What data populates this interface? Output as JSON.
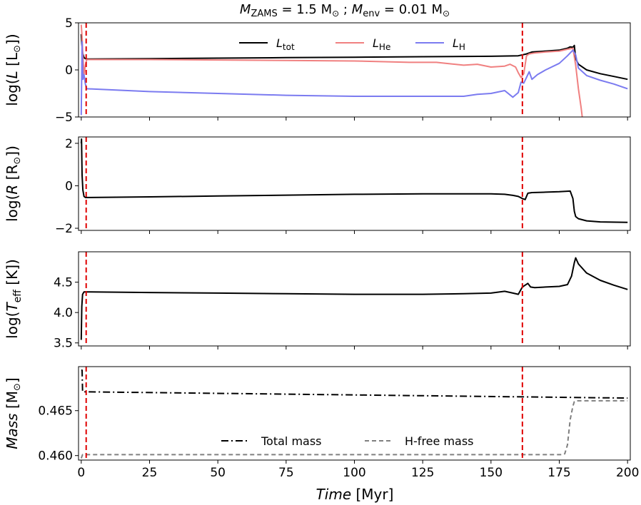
{
  "chart_data": {
    "type": "line",
    "title": "M_ZAMS = 1.5 M⊙ ; M_env = 0.01 M⊙",
    "title_parts": {
      "m1": "M",
      "m1_sub": "ZAMS",
      "m1_val": " = 1.5 M",
      "sun1": "⊙",
      "sep": " ; ",
      "m2": "M",
      "m2_sub": "env",
      "m2_val": " = 0.01 M",
      "sun2": "⊙"
    },
    "xlabel": {
      "italic": "Time",
      "rest": " [Myr]"
    },
    "xlim": [
      -1,
      201
    ],
    "x_ticks": [
      0,
      25,
      50,
      75,
      100,
      125,
      150,
      175,
      200
    ],
    "vlines": {
      "x": [
        1.8,
        161.5
      ],
      "color": "#e00000"
    },
    "panels": [
      {
        "id": "luminosity",
        "ylabel": {
          "pre": "log(",
          "italic": "L",
          "mid": " [L",
          "sun": "⊙",
          "post": "])"
        },
        "ylim": [
          -5,
          5
        ],
        "y_ticks": [
          -5,
          0,
          5
        ],
        "series": [
          {
            "name": "L_tot",
            "legend_main": "L",
            "legend_sub": "tot",
            "color": "#000000",
            "x": [
              0,
              0.2,
              0.5,
              1,
              1.5,
              2,
              25,
              50,
              75,
              100,
              125,
              150,
              160,
              163,
              165,
              170,
              175,
              178,
              179,
              180,
              180.5,
              181,
              182,
              185,
              190,
              195,
              200
            ],
            "y": [
              3.8,
              2.8,
              1.8,
              1.3,
              1.2,
              1.15,
              1.2,
              1.25,
              1.3,
              1.35,
              1.4,
              1.45,
              1.5,
              1.7,
              1.9,
              2.0,
              2.1,
              2.3,
              2.45,
              2.4,
              2.6,
              1.2,
              0.6,
              0.0,
              -0.4,
              -0.7,
              -1.0
            ]
          },
          {
            "name": "L_He",
            "legend_main": "L",
            "legend_sub": "He",
            "color": "#f08080",
            "x": [
              0,
              0.3,
              0.6,
              1,
              1.5,
              2,
              25,
              50,
              75,
              100,
              120,
              130,
              140,
              145,
              150,
              155,
              157,
              159,
              160,
              161,
              162,
              163,
              164,
              166,
              170,
              175,
              178,
              180,
              181,
              182,
              183,
              183.5
            ],
            "y": [
              4.8,
              3.5,
              1.5,
              -0.5,
              0.5,
              1.1,
              1.1,
              1.05,
              1.0,
              0.95,
              0.8,
              0.8,
              0.5,
              0.6,
              0.3,
              0.4,
              0.6,
              0.3,
              -0.3,
              -0.8,
              -0.4,
              1.5,
              1.7,
              1.8,
              1.9,
              2.0,
              2.2,
              2.3,
              0.5,
              -2.0,
              -4.0,
              -5.2
            ]
          },
          {
            "name": "L_H",
            "legend_main": "L",
            "legend_sub": "H",
            "color": "#7b7bf0",
            "x": [
              0,
              0.3,
              0.6,
              1,
              1.5,
              2,
              25,
              50,
              75,
              100,
              125,
              140,
              145,
              150,
              155,
              158,
              160,
              161,
              162,
              163,
              164,
              165,
              167,
              170,
              175,
              178,
              180,
              181,
              182,
              185,
              190,
              195,
              200
            ],
            "y": [
              -4.8,
              3.0,
              -1.0,
              -0.5,
              -1.5,
              -2.0,
              -2.3,
              -2.5,
              -2.7,
              -2.8,
              -2.8,
              -2.8,
              -2.6,
              -2.5,
              -2.2,
              -2.9,
              -2.4,
              -1.3,
              -1.4,
              -0.8,
              -0.2,
              -1.0,
              -0.5,
              0.0,
              0.7,
              1.5,
              2.1,
              1.6,
              0.2,
              -0.6,
              -1.1,
              -1.5,
              -2.0
            ]
          }
        ]
      },
      {
        "id": "radius",
        "ylabel": {
          "pre": "log(",
          "italic": "R",
          "mid": " [R",
          "sun": "⊙",
          "post": "])"
        },
        "ylim": [
          -2.1,
          2.3
        ],
        "y_ticks": [
          -2,
          0,
          2
        ],
        "series": [
          {
            "name": "log R",
            "color": "#000000",
            "x": [
              0,
              0.1,
              0.3,
              0.6,
              1,
              1.5,
              2,
              25,
              50,
              75,
              100,
              125,
              150,
              155,
              158,
              160,
              161.5,
              162.5,
              163.5,
              165,
              170,
              175,
              179,
              180,
              180.5,
              181,
              182,
              185,
              190,
              200
            ],
            "y": [
              2.0,
              2.2,
              0.5,
              -0.2,
              -0.5,
              -0.55,
              -0.55,
              -0.52,
              -0.48,
              -0.44,
              -0.4,
              -0.38,
              -0.38,
              -0.4,
              -0.45,
              -0.5,
              -0.6,
              -0.65,
              -0.35,
              -0.32,
              -0.3,
              -0.28,
              -0.25,
              -0.6,
              -1.2,
              -1.45,
              -1.55,
              -1.65,
              -1.7,
              -1.72
            ]
          }
        ]
      },
      {
        "id": "teff",
        "ylabel": {
          "pre": "log(",
          "italic": "T",
          "sub": "eff",
          "mid": " [K])",
          "sun": "",
          "post": ""
        },
        "ylim": [
          3.45,
          5.0
        ],
        "y_ticks": [
          3.5,
          4.0,
          4.5
        ],
        "y_tick_labels": [
          "3.5",
          "4.0",
          "4.5"
        ],
        "series": [
          {
            "name": "log Teff",
            "color": "#000000",
            "x": [
              0,
              0.2,
              0.5,
              1,
              1.5,
              2,
              25,
              50,
              75,
              100,
              125,
              140,
              150,
              155,
              158,
              160,
              161.5,
              162.5,
              163.5,
              164.5,
              166,
              170,
              175,
              178,
              179.5,
              180.5,
              181,
              182,
              185,
              190,
              195,
              200
            ],
            "y": [
              3.55,
              4.1,
              4.3,
              4.34,
              4.34,
              4.34,
              4.33,
              4.32,
              4.31,
              4.3,
              4.3,
              4.31,
              4.32,
              4.35,
              4.32,
              4.3,
              4.42,
              4.45,
              4.48,
              4.42,
              4.41,
              4.42,
              4.43,
              4.46,
              4.6,
              4.82,
              4.9,
              4.8,
              4.65,
              4.53,
              4.45,
              4.38
            ]
          }
        ]
      },
      {
        "id": "mass",
        "ylabel": {
          "pre": "",
          "italic": "Mass",
          "mid": " [M",
          "sun": "⊙",
          "post": "]"
        },
        "ylim": [
          0.4595,
          0.4699
        ],
        "y_ticks": [
          0.46,
          0.465
        ],
        "y_tick_labels": [
          "0.460",
          "0.465"
        ],
        "series": [
          {
            "name": "Total mass",
            "legend_label": "Total mass",
            "color": "#000000",
            "dash": "10,4,2,4",
            "x": [
              0,
              0.3,
              0.5,
              1,
              200
            ],
            "y": [
              0.4695,
              0.4695,
              0.4671,
              0.4671,
              0.4664
            ]
          },
          {
            "name": "H-free mass",
            "legend_label": "H-free mass",
            "color": "#808080",
            "dash": "6,4",
            "x": [
              0,
              0.5,
              1,
              2,
              176,
              177,
              178,
              179,
              180,
              180.5,
              181,
              185,
              200
            ],
            "y": [
              0.4597,
              0.4601,
              0.4601,
              0.4601,
              0.4601,
              0.4602,
              0.4612,
              0.464,
              0.4655,
              0.466,
              0.4661,
              0.4661,
              0.4661
            ]
          }
        ]
      }
    ]
  }
}
